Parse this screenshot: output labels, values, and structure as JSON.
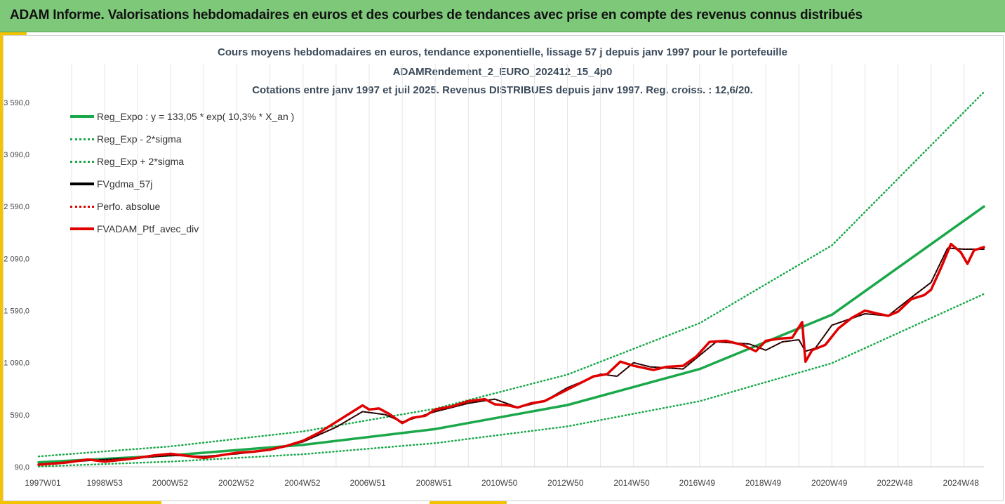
{
  "header": {
    "title": "ADAM Informe. Valorisations hebdomadaires en euros et des courbes de tendances avec prise en compte des revenus connus distribués"
  },
  "chart_data": {
    "type": "line",
    "title_lines": [
      "Cours moyens hebdomadaires  en euros, tendance exponentielle, lissage 57 j depuis janv 1997 pour le portefeuille",
      "ADAMRendement_2_EURO_202412_15_4p0",
      "Cotations  entre janv 1997 et juil 2025. Revenus DISTRIBUES depuis janv 1997. Reg. croiss. : 12,6/20."
    ],
    "xlabel": "",
    "ylabel": "",
    "y_ticks": [
      "90,0",
      "590,0",
      "1 090,0",
      "1 590,0",
      "2 090,0",
      "2 590,0",
      "3 090,0",
      "3 590,0"
    ],
    "ylim": [
      90,
      3690
    ],
    "x_ticks": [
      "1997W01",
      "1998W53",
      "2000W52",
      "2002W52",
      "2004W52",
      "2006W51",
      "2008W51",
      "2010W50",
      "2012W50",
      "2014W50",
      "2016W49",
      "2018W49",
      "2020W49",
      "2022W48",
      "2024W48"
    ],
    "xlim": [
      1997.0,
      2025.6
    ],
    "grid": "vertical",
    "legend_position": "top-left",
    "series": [
      {
        "name": "Reg_Expo : y = 133,05 * exp( 10,3% *  X_an )",
        "color": "#1aa84a",
        "style": "solid",
        "x": [
          1997.0,
          2001.0,
          2005.0,
          2009.0,
          2013.0,
          2017.0,
          2021.0,
          2025.6
        ],
        "values": [
          133,
          200,
          301,
          453,
          683,
          1029,
          1550,
          2590
        ]
      },
      {
        "name": "Reg_Exp - 2*sigma",
        "color": "#1aa84a",
        "style": "dotted",
        "x": [
          1997.0,
          2001.0,
          2005.0,
          2009.0,
          2013.0,
          2017.0,
          2021.0,
          2025.6
        ],
        "values": [
          93,
          140,
          211,
          317,
          478,
          720,
          1085,
          1750
        ]
      },
      {
        "name": "Reg_Exp + 2*sigma",
        "color": "#1aa84a",
        "style": "dotted",
        "x": [
          1997.0,
          2001.0,
          2005.0,
          2009.0,
          2013.0,
          2017.0,
          2021.0,
          2025.6
        ],
        "values": [
          190,
          286,
          430,
          648,
          976,
          1470,
          2216,
          3690
        ]
      },
      {
        "name": "FVgdma_57j",
        "color": "#000000",
        "style": "solid",
        "x": [
          1997.0,
          1998.5,
          2000.0,
          2001.0,
          2002.0,
          2003.0,
          2004.0,
          2005.0,
          2006.0,
          2006.8,
          2007.5,
          2008.0,
          2008.5,
          2009.0,
          2010.0,
          2010.8,
          2011.5,
          2012.3,
          2013.0,
          2014.0,
          2014.5,
          2015.0,
          2015.5,
          2016.5,
          2017.5,
          2018.5,
          2019.0,
          2019.5,
          2020.0,
          2020.2,
          2020.5,
          2021.0,
          2022.0,
          2022.7,
          2023.5,
          2024.0,
          2024.5,
          2025.0,
          2025.6
        ],
        "values": [
          115,
          150,
          175,
          200,
          190,
          215,
          250,
          330,
          470,
          620,
          590,
          520,
          570,
          620,
          700,
          740,
          660,
          720,
          850,
          980,
          960,
          1090,
          1050,
          1030,
          1290,
          1270,
          1210,
          1290,
          1310,
          1200,
          1230,
          1450,
          1560,
          1540,
          1740,
          1860,
          2190,
          2180,
          2180
        ]
      },
      {
        "name": "Perfo. absolue",
        "color": "#e00000",
        "style": "dotted",
        "x": [
          1997.0,
          1998.5,
          2000.0,
          2001.0,
          2002.0,
          2003.0,
          2004.0,
          2005.0,
          2006.0,
          2006.8,
          2007.5,
          2008.0,
          2008.5,
          2009.0,
          2010.0,
          2010.8,
          2011.5,
          2012.3,
          2013.0,
          2014.0,
          2014.5,
          2015.0,
          2015.5,
          2016.5,
          2017.5,
          2018.5,
          2019.0,
          2019.5,
          2020.0,
          2020.2,
          2020.5,
          2021.0,
          2022.0,
          2022.7,
          2023.5,
          2024.0,
          2024.5,
          2025.0,
          2025.6
        ],
        "values": [
          115,
          150,
          175,
          200,
          190,
          215,
          250,
          330,
          470,
          620,
          590,
          520,
          570,
          620,
          700,
          740,
          660,
          720,
          850,
          980,
          960,
          1090,
          1050,
          1030,
          1290,
          1270,
          1210,
          1290,
          1310,
          1200,
          1230,
          1450,
          1560,
          1540,
          1740,
          1860,
          2190,
          2180,
          2180
        ]
      },
      {
        "name": "FVADAM_Ptf_avec_div",
        "color": "#e00000",
        "style": "solid-thick",
        "x": [
          1997.0,
          1997.8,
          1998.5,
          1999.0,
          1999.6,
          2000.0,
          2000.5,
          2001.0,
          2001.5,
          2002.0,
          2002.5,
          2003.0,
          2003.5,
          2004.0,
          2004.5,
          2005.0,
          2005.5,
          2006.0,
          2006.4,
          2006.8,
          2007.0,
          2007.3,
          2007.6,
          2008.0,
          2008.3,
          2008.7,
          2009.0,
          2009.5,
          2010.0,
          2010.5,
          2010.8,
          2011.2,
          2011.5,
          2011.9,
          2012.3,
          2012.8,
          2013.3,
          2013.8,
          2014.2,
          2014.6,
          2015.0,
          2015.3,
          2015.6,
          2016.0,
          2016.5,
          2016.9,
          2017.3,
          2017.8,
          2018.3,
          2018.7,
          2019.0,
          2019.4,
          2019.8,
          2020.1,
          2020.2,
          2020.4,
          2020.8,
          2021.2,
          2021.6,
          2022.0,
          2022.4,
          2022.7,
          2023.0,
          2023.4,
          2023.8,
          2024.0,
          2024.3,
          2024.6,
          2024.9,
          2025.1,
          2025.3,
          2025.6
        ],
        "values": [
          110,
          130,
          160,
          140,
          160,
          175,
          200,
          215,
          195,
          175,
          200,
          225,
          235,
          255,
          290,
          340,
          420,
          520,
          600,
          680,
          640,
          650,
          600,
          510,
          560,
          580,
          640,
          670,
          720,
          740,
          690,
          680,
          660,
          700,
          720,
          800,
          880,
          960,
          980,
          1100,
          1060,
          1040,
          1020,
          1050,
          1060,
          1150,
          1290,
          1300,
          1260,
          1200,
          1300,
          1320,
          1330,
          1480,
          1100,
          1210,
          1260,
          1420,
          1520,
          1590,
          1560,
          1540,
          1580,
          1700,
          1740,
          1790,
          2000,
          2230,
          2150,
          2040,
          2170,
          2200
        ]
      }
    ]
  }
}
